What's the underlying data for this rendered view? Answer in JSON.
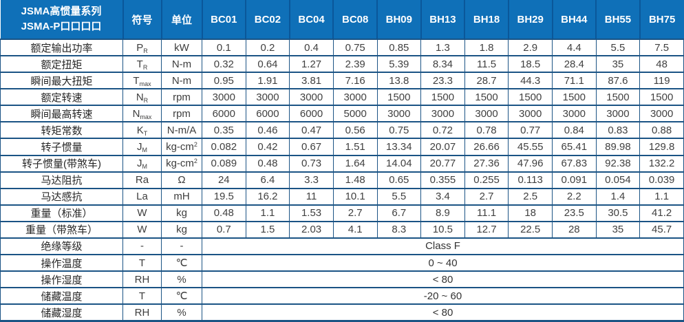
{
  "chart_data": {
    "type": "table",
    "title_line1": "JSMA高惯量系列",
    "title_line2": "JSMA-P口口口口",
    "header": {
      "symbol": "符号",
      "unit": "单位",
      "models": [
        "BC01",
        "BC02",
        "BC04",
        "BC08",
        "BH09",
        "BH13",
        "BH18",
        "BH29",
        "BH44",
        "BH55",
        "BH75"
      ]
    },
    "rows": [
      {
        "label": "额定输出功率",
        "symbol": "P",
        "symbol_sub": "R",
        "unit": "kW",
        "values": [
          "0.1",
          "0.2",
          "0.4",
          "0.75",
          "0.85",
          "1.3",
          "1.8",
          "2.9",
          "4.4",
          "5.5",
          "7.5"
        ]
      },
      {
        "label": "额定扭矩",
        "symbol": "T",
        "symbol_sub": "R",
        "unit": "N-m",
        "values": [
          "0.32",
          "0.64",
          "1.27",
          "2.39",
          "5.39",
          "8.34",
          "11.5",
          "18.5",
          "28.4",
          "35",
          "48"
        ]
      },
      {
        "label": "瞬间最大扭矩",
        "symbol": "T",
        "symbol_sub": "max",
        "unit": "N-m",
        "values": [
          "0.95",
          "1.91",
          "3.81",
          "7.16",
          "13.8",
          "23.3",
          "28.7",
          "44.3",
          "71.1",
          "87.6",
          "119"
        ]
      },
      {
        "label": "额定转速",
        "symbol": "N",
        "symbol_sub": "R",
        "unit": "rpm",
        "values": [
          "3000",
          "3000",
          "3000",
          "3000",
          "1500",
          "1500",
          "1500",
          "1500",
          "1500",
          "1500",
          "1500"
        ]
      },
      {
        "label": "瞬间最高转速",
        "symbol": "N",
        "symbol_sub": "max",
        "unit": "rpm",
        "values": [
          "6000",
          "6000",
          "6000",
          "5000",
          "3000",
          "3000",
          "3000",
          "3000",
          "3000",
          "3000",
          "3000"
        ]
      },
      {
        "label": "转矩常数",
        "symbol": "K",
        "symbol_sub": "T",
        "unit": "N-m/A",
        "values": [
          "0.35",
          "0.46",
          "0.47",
          "0.56",
          "0.75",
          "0.72",
          "0.78",
          "0.77",
          "0.84",
          "0.83",
          "0.88"
        ]
      },
      {
        "label": "转子惯量",
        "symbol": "J",
        "symbol_sub": "M",
        "unit": "kg-cm",
        "unit_sup": "2",
        "values": [
          "0.082",
          "0.42",
          "0.67",
          "1.51",
          "13.34",
          "20.07",
          "26.66",
          "45.55",
          "65.41",
          "89.98",
          "129.8"
        ]
      },
      {
        "label": "转子惯量(带煞车)",
        "symbol": "J",
        "symbol_sub": "M",
        "unit": "kg-cm",
        "unit_sup": "2",
        "values": [
          "0.089",
          "0.48",
          "0.73",
          "1.64",
          "14.04",
          "20.77",
          "27.36",
          "47.96",
          "67.83",
          "92.38",
          "132.2"
        ]
      },
      {
        "label": "马达阻抗",
        "symbol": "Ra",
        "unit": "Ω",
        "values": [
          "24",
          "6.4",
          "3.3",
          "1.48",
          "0.65",
          "0.355",
          "0.255",
          "0.113",
          "0.091",
          "0.054",
          "0.039"
        ]
      },
      {
        "label": "马达感抗",
        "symbol": "La",
        "unit": "mH",
        "values": [
          "19.5",
          "16.2",
          "11",
          "10.1",
          "5.5",
          "3.4",
          "2.7",
          "2.5",
          "2.2",
          "1.4",
          "1.1"
        ]
      },
      {
        "label": "重量（标准）",
        "symbol": "W",
        "unit": "kg",
        "values": [
          "0.48",
          "1.1",
          "1.53",
          "2.7",
          "6.7",
          "8.9",
          "11.1",
          "18",
          "23.5",
          "30.5",
          "41.2"
        ]
      },
      {
        "label": "重量（带煞车）",
        "symbol": "W",
        "unit": "kg",
        "values": [
          "0.7",
          "1.5",
          "2.03",
          "4.1",
          "8.3",
          "10.5",
          "12.7",
          "22.5",
          "28",
          "35",
          "45.7"
        ]
      },
      {
        "label": "绝缘等级",
        "symbol": "-",
        "unit": "-",
        "span_value": "Class F"
      },
      {
        "label": "操作温度",
        "symbol": "T",
        "unit": "℃",
        "span_value": "0 ~ 40"
      },
      {
        "label": "操作湿度",
        "symbol": "RH",
        "unit": "%",
        "span_value": "< 80"
      },
      {
        "label": "储藏温度",
        "symbol": "T",
        "unit": "℃",
        "span_value": "-20 ~ 60"
      },
      {
        "label": "储藏湿度",
        "symbol": "RH",
        "unit": "%",
        "span_value": "< 80"
      }
    ],
    "layout": {
      "header_bg": "#0F70B8",
      "header_text": "#FFFFFF",
      "grid_color": "#1A5384",
      "body_text": "#404040"
    }
  }
}
